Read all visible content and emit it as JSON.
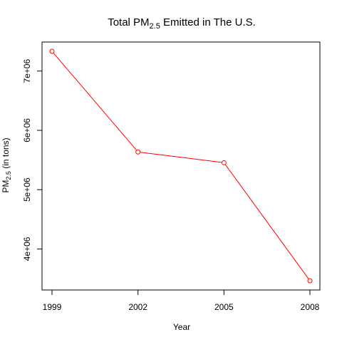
{
  "chart_data": {
    "type": "line",
    "title": {
      "prefix": "Total PM",
      "subscript": "2.5",
      "suffix": " Emitted in The U.S."
    },
    "xlabel": "Year",
    "ylabel": {
      "prefix": "PM",
      "subscript": "2.5",
      "suffix": " (in tons)"
    },
    "x": [
      1999,
      2002,
      2005,
      2008
    ],
    "x_tick_labels": [
      "1999",
      "2002",
      "2005",
      "2008"
    ],
    "y": [
      7332967,
      5635780,
      5454703,
      3464206
    ],
    "xlim": [
      1999,
      2008
    ],
    "ylim": [
      3464206,
      7332967
    ],
    "y_ticks": [
      4000000,
      5000000,
      6000000,
      7000000
    ],
    "y_tick_labels": [
      "4e+06",
      "5e+06",
      "6e+06",
      "7e+06"
    ],
    "series_color": "#ff0000",
    "marker": "open-circle",
    "grid": false,
    "legend": "none"
  }
}
